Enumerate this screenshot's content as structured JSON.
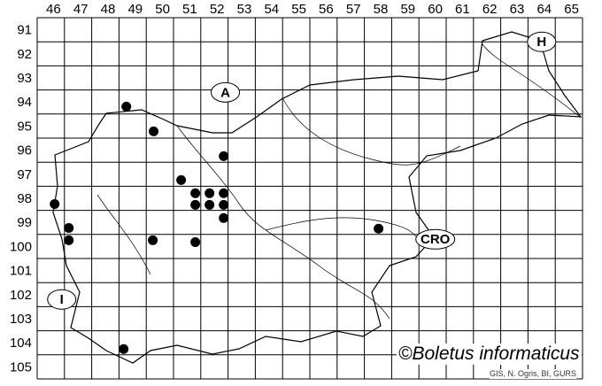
{
  "map": {
    "columns": [
      "46",
      "47",
      "48",
      "49",
      "50",
      "51",
      "52",
      "53",
      "54",
      "55",
      "56",
      "57",
      "58",
      "59",
      "60",
      "61",
      "62",
      "63",
      "64",
      "65"
    ],
    "rows": [
      "91",
      "92",
      "93",
      "94",
      "95",
      "96",
      "97",
      "98",
      "99",
      "100",
      "101",
      "102",
      "103",
      "104",
      "105"
    ],
    "country_labels": [
      {
        "text": "A",
        "col": 53.4,
        "row": 94.6
      },
      {
        "text": "H",
        "col": 65.0,
        "row": 92.5
      },
      {
        "text": "CRO",
        "col": 61.1,
        "row": 100.7
      },
      {
        "text": "I",
        "col": 47.4,
        "row": 103.2
      }
    ],
    "records": [
      {
        "col": 49.77,
        "row": 95.19
      },
      {
        "col": 50.77,
        "row": 96.22
      },
      {
        "col": 53.34,
        "row": 97.25
      },
      {
        "col": 51.78,
        "row": 98.24
      },
      {
        "col": 52.3,
        "row": 98.79
      },
      {
        "col": 52.82,
        "row": 98.79
      },
      {
        "col": 53.34,
        "row": 98.79
      },
      {
        "col": 52.3,
        "row": 99.27
      },
      {
        "col": 52.82,
        "row": 99.27
      },
      {
        "col": 53.34,
        "row": 99.27
      },
      {
        "col": 53.34,
        "row": 99.82
      },
      {
        "col": 47.14,
        "row": 99.24
      },
      {
        "col": 47.66,
        "row": 100.23
      },
      {
        "col": 47.66,
        "row": 100.74
      },
      {
        "col": 50.74,
        "row": 100.74
      },
      {
        "col": 52.3,
        "row": 100.82
      },
      {
        "col": 59.02,
        "row": 100.26
      },
      {
        "col": 49.67,
        "row": 105.26
      }
    ],
    "record_color": "#000000"
  },
  "credit": "©Boletus informaticus",
  "source": "GIS, N. Ogris, BI, GURS"
}
